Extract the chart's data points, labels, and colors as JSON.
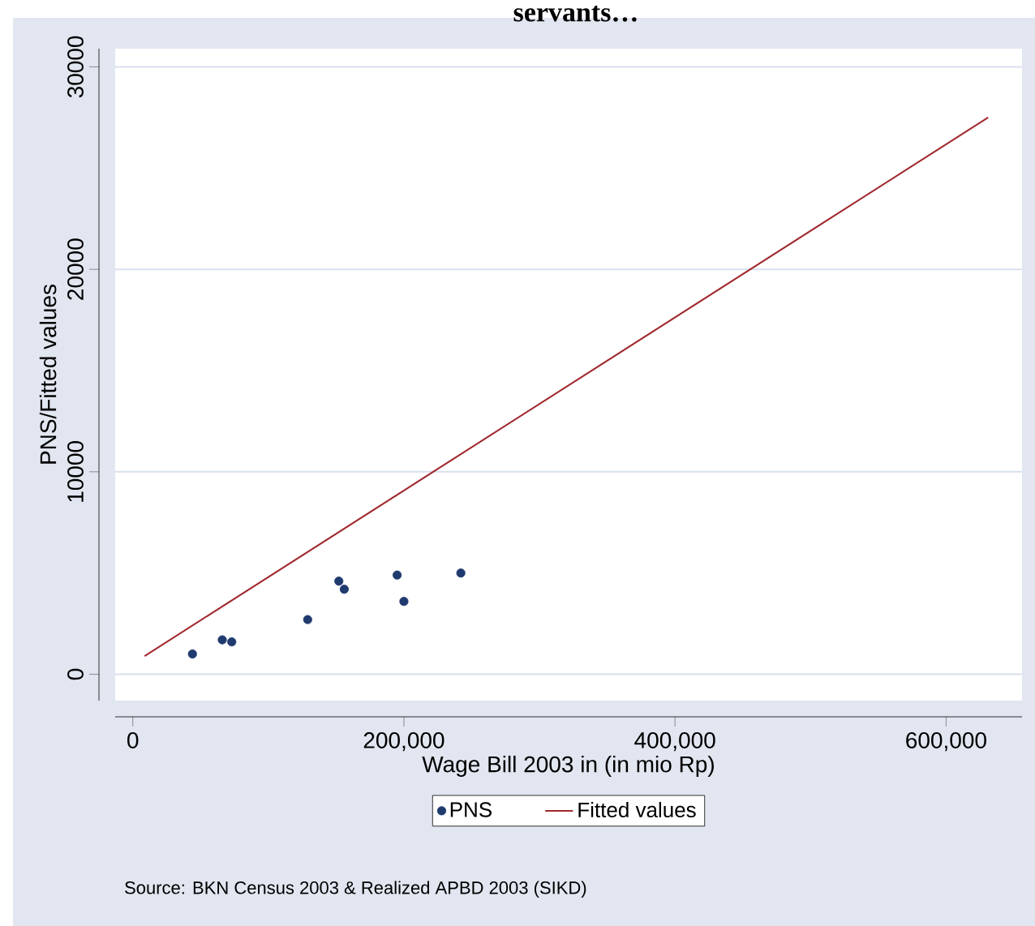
{
  "chart_data": {
    "type": "scatter",
    "title": "servants…",
    "xlabel": "Wage Bill 2003 in (in mio Rp)",
    "ylabel": "PNS/Fitted values",
    "xlim": [
      -13000,
      656000
    ],
    "ylim": [
      -1300,
      30900
    ],
    "xticks": [
      0,
      {
        "value": 200000,
        "label": "200,000"
      },
      {
        "value": 400000,
        "label": "400,000"
      },
      {
        "value": 600000,
        "label": "600,000"
      }
    ],
    "yticks": [
      0,
      10000,
      20000,
      30000
    ],
    "grid": "y",
    "legend": "bottom",
    "series": [
      {
        "name": "PNS",
        "marker": "circle",
        "color": "#1f3a6e",
        "x": [
          44000,
          66000,
          73000,
          129000,
          152000,
          156000,
          195000,
          200000,
          242000
        ],
        "values": [
          1000,
          1700,
          1600,
          2700,
          4600,
          4200,
          4900,
          3600,
          5000
        ]
      },
      {
        "name": "Fitted values",
        "type": "line",
        "line_style": "solid",
        "color": "#a0282d",
        "x": [
          8700,
          631000
        ],
        "values": [
          900,
          27500
        ]
      }
    ],
    "annotations": [
      "Source: BKN Census 2003 & Realized APBD 2003 (SIKD)"
    ]
  }
}
